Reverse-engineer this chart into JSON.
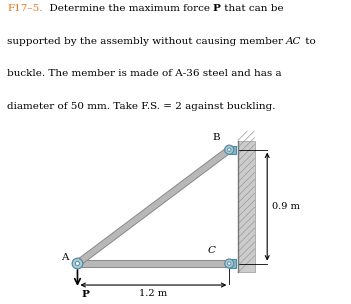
{
  "dim_09": "0.9 m",
  "dim_12": "1.2 m",
  "label_A": "A",
  "label_B": "B",
  "label_C": "C",
  "label_P": "P",
  "member_color": "#b8b8b8",
  "member_edge": "#888888",
  "pin_face": "#a8ccd8",
  "pin_edge": "#5a8aa0",
  "bracket_face": "#8ab8cc",
  "bracket_edge": "#4a8aaa",
  "wall_face": "#cccccc",
  "wall_edge": "#999999",
  "title_color": "#e87722",
  "text_color": "#000000",
  "bg_color": "#ffffff",
  "title_fontsize": 7.5,
  "label_fontsize": 7.5,
  "dim_fontsize": 7.0
}
